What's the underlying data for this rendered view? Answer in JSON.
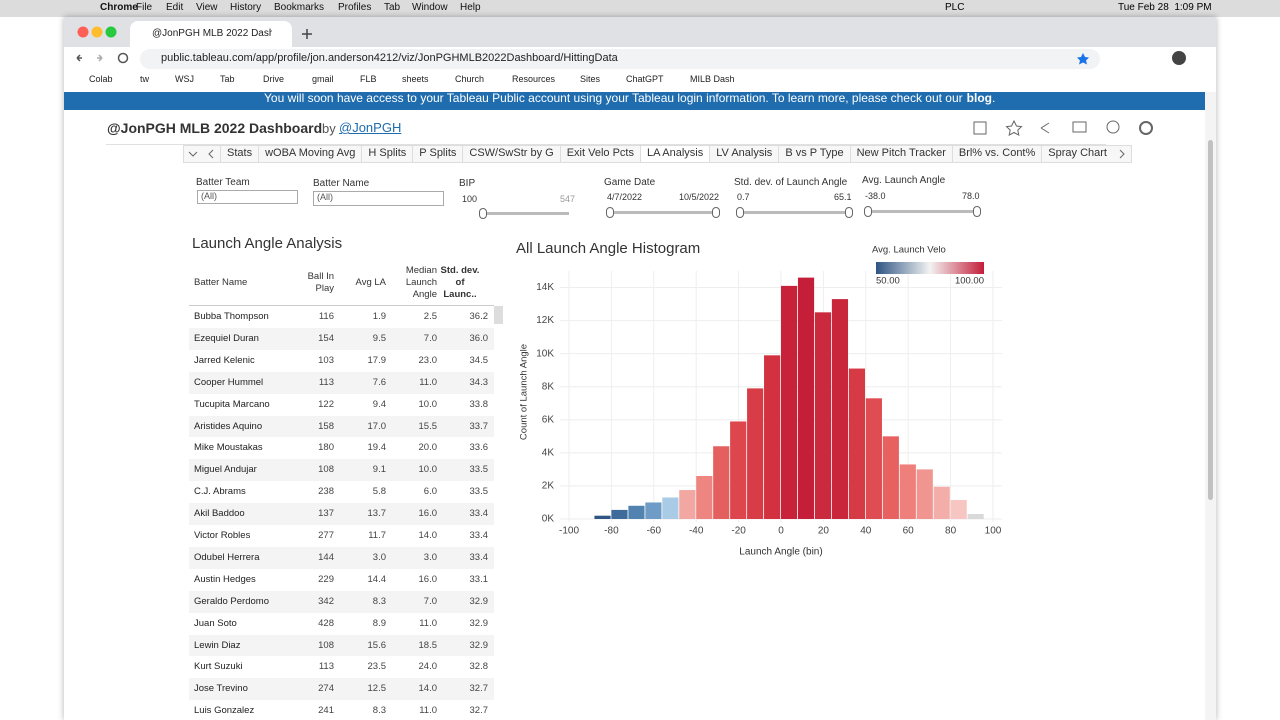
{
  "menubar": {
    "items": [
      "Chrome",
      "File",
      "Edit",
      "View",
      "History",
      "Bookmarks",
      "Profiles",
      "Tab",
      "Window",
      "Help"
    ],
    "status": "PLC",
    "datetime": "Tue Feb 28  1:09 PM"
  },
  "browser": {
    "tab_title": "@JonPGH MLB 2022 Dashboa",
    "url": "public.tableau.com/app/profile/jon.anderson4212/viz/JonPGHMLB2022Dashboard/HittingData",
    "bookmarks": [
      "Colab",
      "tw",
      "WSJ",
      "Tab",
      "Drive",
      "gmail",
      "FLB",
      "sheets",
      "Church",
      "Resources",
      "Sites",
      "ChatGPT",
      "MILB Dash"
    ]
  },
  "banner": {
    "text": "You will soon have access to your Tableau Public account using your Tableau login information. To learn more, please check out our",
    "link": "blog",
    "end": "."
  },
  "dashboard": {
    "title": "@JonPGH MLB 2022 Dashboard",
    "by": "by",
    "author": "@JonPGH",
    "sheets": [
      "Stats",
      "wOBA Moving Avg",
      "H Splits",
      "P Splits",
      "CSW/SwStr by G",
      "Exit Velo Pcts",
      "LA Analysis",
      "LV Analysis",
      "B vs P Type",
      "New Pitch Tracker",
      "Brl% vs. Cont%",
      "Spray Chart"
    ],
    "active_sheet": 6
  },
  "filters": [
    {
      "label": "Batter Team",
      "value": "(All)"
    },
    {
      "label": "Batter Name",
      "value": "(All)"
    },
    {
      "label": "BIP",
      "min": "100",
      "max": "547"
    },
    {
      "label": "Game Date",
      "min": "4/7/2022",
      "max": "10/5/2022"
    },
    {
      "label": "Std. dev. of Launch Angle",
      "min": "0.7",
      "max": "65.1"
    },
    {
      "label": "Avg. Launch Angle",
      "min": "-38.0",
      "max": "78.0"
    }
  ],
  "table": {
    "title": "Launch Angle Analysis",
    "headers": [
      "Batter Name",
      "Ball In Play",
      "Avg LA",
      "Median Launch Angle",
      "Std. dev. of Launc.."
    ],
    "rows": [
      [
        "Bubba Thompson",
        "116",
        "1.9",
        "2.5",
        "36.2"
      ],
      [
        "Ezequiel Duran",
        "154",
        "9.5",
        "7.0",
        "36.0"
      ],
      [
        "Jarred Kelenic",
        "103",
        "17.9",
        "23.0",
        "34.5"
      ],
      [
        "Cooper Hummel",
        "113",
        "7.6",
        "11.0",
        "34.3"
      ],
      [
        "Tucupita Marcano",
        "122",
        "9.4",
        "10.0",
        "33.8"
      ],
      [
        "Aristides Aquino",
        "158",
        "17.0",
        "15.5",
        "33.7"
      ],
      [
        "Mike Moustakas",
        "180",
        "19.4",
        "20.0",
        "33.6"
      ],
      [
        "Miguel Andujar",
        "108",
        "9.1",
        "10.0",
        "33.5"
      ],
      [
        "C.J. Abrams",
        "238",
        "5.8",
        "6.0",
        "33.5"
      ],
      [
        "Akil Baddoo",
        "137",
        "13.7",
        "16.0",
        "33.4"
      ],
      [
        "Victor Robles",
        "277",
        "11.7",
        "14.0",
        "33.4"
      ],
      [
        "Odubel Herrera",
        "144",
        "3.0",
        "3.0",
        "33.4"
      ],
      [
        "Austin Hedges",
        "229",
        "14.4",
        "16.0",
        "33.1"
      ],
      [
        "Geraldo Perdomo",
        "342",
        "8.3",
        "7.0",
        "32.9"
      ],
      [
        "Juan Soto",
        "428",
        "8.9",
        "11.0",
        "32.9"
      ],
      [
        "Lewin Diaz",
        "108",
        "15.6",
        "18.5",
        "32.9"
      ],
      [
        "Kurt Suzuki",
        "113",
        "23.5",
        "24.0",
        "32.8"
      ],
      [
        "Jose Trevino",
        "274",
        "12.5",
        "14.0",
        "32.7"
      ],
      [
        "Luis Gonzalez",
        "241",
        "8.3",
        "11.0",
        "32.7"
      ]
    ]
  },
  "chart_data": {
    "type": "histogram",
    "title": "All Launch Angle Histogram",
    "x_label": "Launch Angle (bin)",
    "y_label": "Count of Launch Angle",
    "bins": [
      -88,
      -80,
      -72,
      -64,
      -56,
      -48,
      -40,
      -32,
      -24,
      -16,
      -8,
      0,
      8,
      16,
      24,
      32,
      40,
      48,
      56,
      64,
      72,
      80,
      88,
      96
    ],
    "values": [
      200,
      550,
      800,
      1000,
      1300,
      1750,
      2600,
      4400,
      5900,
      7900,
      9900,
      14100,
      14600,
      12500,
      13300,
      9100,
      7300,
      5000,
      3300,
      3000,
      1950,
      1150,
      300
    ],
    "colors": [
      "#2f5584",
      "#3f6b9a",
      "#5283b0",
      "#6f9cc6",
      "#a9cbe5",
      "#f2a7a3",
      "#ee8580",
      "#e4605f",
      "#dd464d",
      "#d83c46",
      "#d2323f",
      "#c7223a",
      "#c41e38",
      "#cb293d",
      "#c9253b",
      "#d63a44",
      "#df4c52",
      "#e6615f",
      "#ee7f7a",
      "#f09590",
      "#f3aeaa",
      "#f7c6c2",
      "#d9d9d9"
    ],
    "xlim": [
      -100,
      100
    ],
    "xticks": [
      -100,
      -80,
      -60,
      -40,
      -20,
      0,
      20,
      40,
      60,
      80,
      100
    ],
    "ylim": [
      0,
      15000
    ],
    "yticks": [
      {
        "value": 0,
        "label": "0K"
      },
      {
        "value": 2000,
        "label": "2K"
      },
      {
        "value": 4000,
        "label": "4K"
      },
      {
        "value": 6000,
        "label": "6K"
      },
      {
        "value": 8000,
        "label": "8K"
      },
      {
        "value": 10000,
        "label": "10K"
      },
      {
        "value": 12000,
        "label": "12K"
      },
      {
        "value": 14000,
        "label": "14K"
      }
    ],
    "grid": true,
    "legend": {
      "title": "Avg. Launch Velo",
      "labels": [
        "50.00",
        "100.00"
      ],
      "colors": [
        "#2f5584",
        "#f2f2f2",
        "#c41e38"
      ]
    }
  }
}
